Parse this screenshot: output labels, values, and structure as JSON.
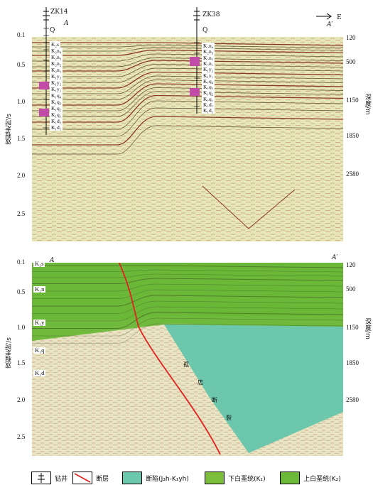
{
  "top": {
    "wells": [
      {
        "name": "ZK14",
        "section_letter": "A",
        "q_label": "Q",
        "formations": [
          "K₂s",
          "K₂n₄",
          "K₂n₃",
          "K₂n₂",
          "K₂n₁",
          "K₁y₃",
          "K₁y₂",
          "K₁y₁",
          "K₁q₄",
          "K₁q₃",
          "K₁q₂",
          "K₁q₁",
          "K₁d₂",
          "K₁d₁"
        ]
      },
      {
        "name": "ZK38",
        "section_letter": "A′",
        "q_label": "Q",
        "formations": [
          "K₂n₄",
          "K₂n₃",
          "K₂n₂",
          "K₂n₁",
          "K₁y₂",
          "K₁y₁",
          "K₁q₄",
          "K₁q₃",
          "K₁q₂",
          "K₁q₁",
          "K₁d₂",
          "K₁d₁"
        ]
      }
    ],
    "direction": "E",
    "left_axis_title": "双程走时/s",
    "right_axis_title": "深度/m",
    "left_ticks": [
      "0.1",
      "0.5",
      "1.0",
      "1.5",
      "2.0",
      "2.5"
    ],
    "right_ticks": [
      "120",
      "500",
      "1150",
      "1850",
      "2580"
    ]
  },
  "bottom": {
    "letter_left": "A",
    "letter_right": "A′",
    "left_axis_title": "双程走时/s",
    "right_axis_title": "深度/m",
    "left_ticks": [
      "0.1",
      "0.5",
      "1.0",
      "1.5",
      "2.0",
      "2.5"
    ],
    "right_ticks": [
      "120",
      "500",
      "1150",
      "1850",
      "2580"
    ],
    "formations": [
      "K₂s",
      "K₂n",
      "K₁y",
      "K₁q",
      "K₁d"
    ],
    "fault_chars": [
      "孤",
      "店",
      "断",
      "裂"
    ]
  },
  "legend": {
    "well": "钻井",
    "fault": "断层",
    "rift": "断陷(J₃h-K₁yh)",
    "lower_cret": "下白垩统(K₁)",
    "upper_cret": "上白垩统(K₂)"
  },
  "colors": {
    "rift": "#6cc7ac",
    "lower": "#7dbd3c",
    "upper": "#6bb83a",
    "fault": "#e32020",
    "marker": "#c24aa8"
  }
}
